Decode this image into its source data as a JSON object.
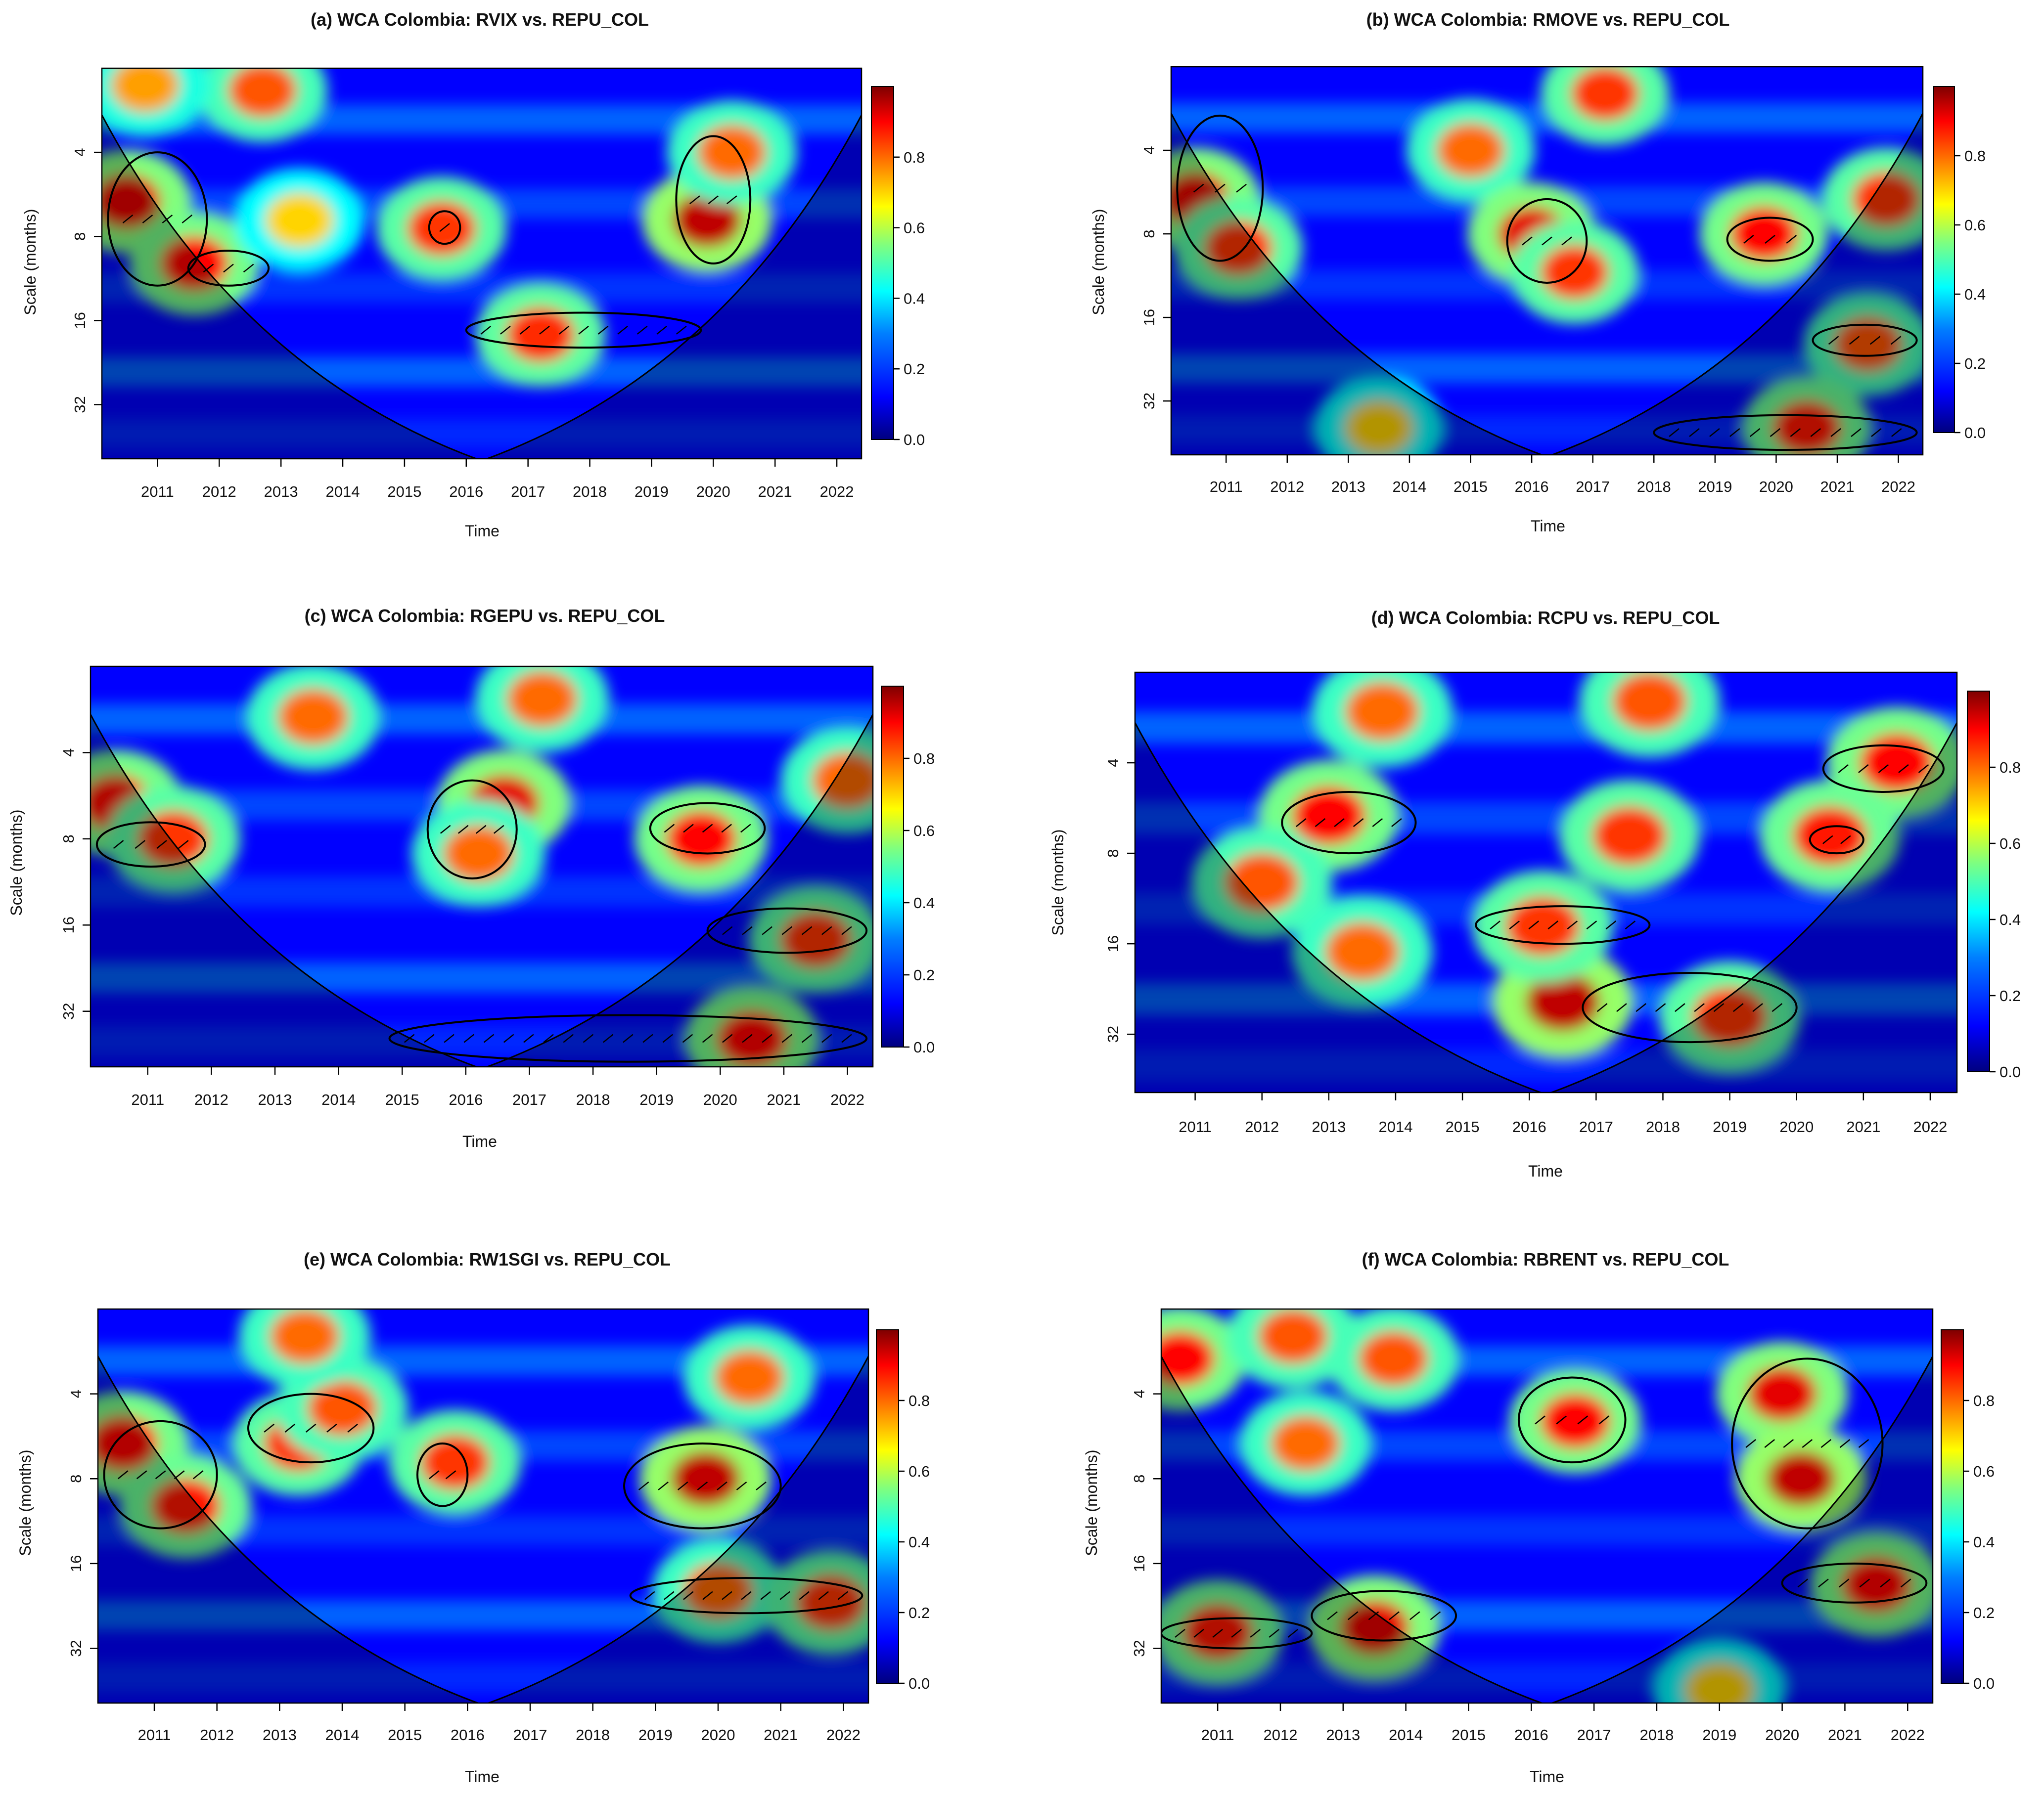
{
  "figure": {
    "colors": {
      "colorbar_stops": [
        "#00007f",
        "#0000ff",
        "#007fff",
        "#00ffff",
        "#7fff7f",
        "#ffff00",
        "#ff7f00",
        "#ff0000",
        "#7f0000"
      ],
      "contour": "#000000",
      "cone_overlay": "rgba(0,0,0,0.3)"
    }
  },
  "chart_data": [
    {
      "type": "heatmap",
      "title": "(a) WCA Colombia: RVIX vs. REPU_COL",
      "xlabel": "Time",
      "ylabel": "Scale (months)",
      "x_ticks": [
        "2011",
        "2012",
        "2013",
        "2014",
        "2015",
        "2016",
        "2017",
        "2018",
        "2019",
        "2020",
        "2021",
        "2022"
      ],
      "xlim": [
        2010.1,
        2022.4
      ],
      "y_ticks": [
        4,
        8,
        16,
        32
      ],
      "ylim": [
        2,
        50
      ],
      "y_scale": "log2",
      "colorbar_ticks": [
        "0.0",
        "0.2",
        "0.4",
        "0.6",
        "0.8"
      ],
      "zlim": [
        0,
        1
      ],
      "hotspots": [
        {
          "x": 2010.5,
          "y": 6,
          "z": 0.92
        },
        {
          "x": 2011.6,
          "y": 10,
          "z": 0.9
        },
        {
          "x": 2012.7,
          "y": 2.4,
          "z": 0.82
        },
        {
          "x": 2013.3,
          "y": 7,
          "z": 0.7
        },
        {
          "x": 2015.6,
          "y": 7.5,
          "z": 0.85
        },
        {
          "x": 2017.2,
          "y": 18,
          "z": 0.86
        },
        {
          "x": 2019.9,
          "y": 7,
          "z": 0.95
        },
        {
          "x": 2020.3,
          "y": 4,
          "z": 0.8
        },
        {
          "x": 2010.8,
          "y": 2.3,
          "z": 0.75
        }
      ],
      "significant_regions": [
        {
          "x": [
            2010.2,
            2011.8
          ],
          "y": [
            4,
            12
          ]
        },
        {
          "x": [
            2011.5,
            2012.8
          ],
          "y": [
            9,
            12
          ]
        },
        {
          "x": [
            2015.4,
            2015.9
          ],
          "y": [
            6.5,
            8.5
          ]
        },
        {
          "x": [
            2016.0,
            2019.8
          ],
          "y": [
            15,
            20
          ]
        },
        {
          "x": [
            2019.4,
            2020.6
          ],
          "y": [
            3.5,
            10
          ]
        }
      ]
    },
    {
      "type": "heatmap",
      "title": "(b) WCA Colombia: RMOVE vs. REPU_COL",
      "xlabel": "Time",
      "ylabel": "Scale (months)",
      "x_ticks": [
        "2011",
        "2012",
        "2013",
        "2014",
        "2015",
        "2016",
        "2017",
        "2018",
        "2019",
        "2020",
        "2021",
        "2022"
      ],
      "xlim": [
        2010.1,
        2022.4
      ],
      "y_ticks": [
        4,
        8,
        16,
        32
      ],
      "ylim": [
        2,
        50
      ],
      "y_scale": "log2",
      "colorbar_ticks": [
        "0.0",
        "0.2",
        "0.4",
        "0.6",
        "0.8"
      ],
      "zlim": [
        0,
        1
      ],
      "hotspots": [
        {
          "x": 2010.5,
          "y": 6,
          "z": 0.92
        },
        {
          "x": 2011.2,
          "y": 9,
          "z": 0.85
        },
        {
          "x": 2015.0,
          "y": 4,
          "z": 0.8
        },
        {
          "x": 2016.0,
          "y": 8,
          "z": 0.92
        },
        {
          "x": 2016.7,
          "y": 11,
          "z": 0.85
        },
        {
          "x": 2017.2,
          "y": 2.5,
          "z": 0.85
        },
        {
          "x": 2019.8,
          "y": 8,
          "z": 0.9
        },
        {
          "x": 2021.8,
          "y": 6,
          "z": 0.85
        },
        {
          "x": 2021.5,
          "y": 20,
          "z": 0.82
        },
        {
          "x": 2020.5,
          "y": 40,
          "z": 0.88
        },
        {
          "x": 2013.5,
          "y": 40,
          "z": 0.7
        }
      ],
      "significant_regions": [
        {
          "x": [
            2010.2,
            2011.6
          ],
          "y": [
            3,
            10
          ]
        },
        {
          "x": [
            2015.6,
            2016.9
          ],
          "y": [
            6,
            12
          ]
        },
        {
          "x": [
            2019.2,
            2020.6
          ],
          "y": [
            7,
            10
          ]
        },
        {
          "x": [
            2020.6,
            2022.3
          ],
          "y": [
            17,
            22
          ]
        },
        {
          "x": [
            2018.0,
            2022.3
          ],
          "y": [
            36,
            48
          ]
        }
      ]
    },
    {
      "type": "heatmap",
      "title": "(c) WCA Colombia: RGEPU vs. REPU_COL",
      "xlabel": "Time",
      "ylabel": "Scale (months)",
      "x_ticks": [
        "2011",
        "2012",
        "2013",
        "2014",
        "2015",
        "2016",
        "2017",
        "2018",
        "2019",
        "2020",
        "2021",
        "2022"
      ],
      "xlim": [
        2010.1,
        2022.4
      ],
      "y_ticks": [
        4,
        8,
        16,
        32
      ],
      "ylim": [
        2,
        50
      ],
      "y_scale": "log2",
      "colorbar_ticks": [
        "0.0",
        "0.2",
        "0.4",
        "0.6",
        "0.8"
      ],
      "zlim": [
        0,
        1
      ],
      "hotspots": [
        {
          "x": 2010.5,
          "y": 6,
          "z": 0.9
        },
        {
          "x": 2011.4,
          "y": 8,
          "z": 0.85
        },
        {
          "x": 2013.6,
          "y": 3,
          "z": 0.8
        },
        {
          "x": 2016.6,
          "y": 6,
          "z": 0.92
        },
        {
          "x": 2016.2,
          "y": 9,
          "z": 0.8
        },
        {
          "x": 2019.7,
          "y": 8,
          "z": 0.9
        },
        {
          "x": 2021.5,
          "y": 18,
          "z": 0.85
        },
        {
          "x": 2022.0,
          "y": 5,
          "z": 0.8
        },
        {
          "x": 2020.5,
          "y": 40,
          "z": 0.9
        },
        {
          "x": 2017.2,
          "y": 2.6,
          "z": 0.8
        }
      ],
      "significant_regions": [
        {
          "x": [
            2010.2,
            2011.9
          ],
          "y": [
            7,
            10
          ]
        },
        {
          "x": [
            2015.4,
            2016.8
          ],
          "y": [
            5,
            11
          ]
        },
        {
          "x": [
            2018.9,
            2020.7
          ],
          "y": [
            6,
            9
          ]
        },
        {
          "x": [
            2019.8,
            2022.3
          ],
          "y": [
            14,
            20
          ]
        },
        {
          "x": [
            2014.8,
            2022.3
          ],
          "y": [
            33,
            48
          ]
        }
      ]
    },
    {
      "type": "heatmap",
      "title": "(d) WCA Colombia: RCPU vs. REPU_COL",
      "xlabel": "Time",
      "ylabel": "Scale (months)",
      "x_ticks": [
        "2011",
        "2012",
        "2013",
        "2014",
        "2015",
        "2016",
        "2017",
        "2018",
        "2019",
        "2020",
        "2021",
        "2022"
      ],
      "xlim": [
        2010.1,
        2022.4
      ],
      "y_ticks": [
        4,
        8,
        16,
        32
      ],
      "ylim": [
        2,
        50
      ],
      "y_scale": "log2",
      "colorbar_ticks": [
        "0.0",
        "0.2",
        "0.4",
        "0.6",
        "0.8"
      ],
      "zlim": [
        0,
        1
      ],
      "hotspots": [
        {
          "x": 2013.0,
          "y": 6,
          "z": 0.9
        },
        {
          "x": 2012.0,
          "y": 10,
          "z": 0.82
        },
        {
          "x": 2013.5,
          "y": 17,
          "z": 0.8
        },
        {
          "x": 2016.5,
          "y": 25,
          "z": 0.95
        },
        {
          "x": 2016.2,
          "y": 14,
          "z": 0.85
        },
        {
          "x": 2019.0,
          "y": 28,
          "z": 0.85
        },
        {
          "x": 2021.5,
          "y": 4,
          "z": 0.9
        },
        {
          "x": 2020.5,
          "y": 7,
          "z": 0.88
        },
        {
          "x": 2017.5,
          "y": 7,
          "z": 0.85
        },
        {
          "x": 2017.8,
          "y": 2.5,
          "z": 0.82
        },
        {
          "x": 2013.8,
          "y": 2.7,
          "z": 0.8
        }
      ],
      "significant_regions": [
        {
          "x": [
            2012.3,
            2014.3
          ],
          "y": [
            5,
            8
          ]
        },
        {
          "x": [
            2015.2,
            2017.8
          ],
          "y": [
            12,
            16
          ]
        },
        {
          "x": [
            2016.8,
            2020.0
          ],
          "y": [
            20,
            34
          ]
        },
        {
          "x": [
            2020.4,
            2022.2
          ],
          "y": [
            3.5,
            5
          ]
        },
        {
          "x": [
            2020.2,
            2021.0
          ],
          "y": [
            6.5,
            8
          ]
        }
      ]
    },
    {
      "type": "heatmap",
      "title": "(e) WCA Colombia: RW1SGI vs. REPU_COL",
      "xlabel": "Time",
      "ylabel": "Scale (months)",
      "x_ticks": [
        "2011",
        "2012",
        "2013",
        "2014",
        "2015",
        "2016",
        "2017",
        "2018",
        "2019",
        "2020",
        "2021",
        "2022"
      ],
      "xlim": [
        2010.1,
        2022.4
      ],
      "y_ticks": [
        4,
        8,
        16,
        32
      ],
      "ylim": [
        2,
        50
      ],
      "y_scale": "log2",
      "colorbar_ticks": [
        "0.0",
        "0.2",
        "0.4",
        "0.6",
        "0.8"
      ],
      "zlim": [
        0,
        1
      ],
      "hotspots": [
        {
          "x": 2010.5,
          "y": 6,
          "z": 0.9
        },
        {
          "x": 2011.5,
          "y": 10,
          "z": 0.88
        },
        {
          "x": 2013.3,
          "y": 6,
          "z": 0.85
        },
        {
          "x": 2014.0,
          "y": 4.5,
          "z": 0.82
        },
        {
          "x": 2013.4,
          "y": 2.5,
          "z": 0.8
        },
        {
          "x": 2015.8,
          "y": 7,
          "z": 0.85
        },
        {
          "x": 2019.8,
          "y": 8,
          "z": 0.95
        },
        {
          "x": 2020.5,
          "y": 3.5,
          "z": 0.8
        },
        {
          "x": 2020.0,
          "y": 20,
          "z": 0.8
        },
        {
          "x": 2021.8,
          "y": 22,
          "z": 0.85
        }
      ],
      "significant_regions": [
        {
          "x": [
            2010.2,
            2012.0
          ],
          "y": [
            5,
            12
          ]
        },
        {
          "x": [
            2012.5,
            2014.5
          ],
          "y": [
            4,
            7
          ]
        },
        {
          "x": [
            2015.2,
            2016.0
          ],
          "y": [
            6,
            10
          ]
        },
        {
          "x": [
            2018.5,
            2021.0
          ],
          "y": [
            6,
            12
          ]
        },
        {
          "x": [
            2018.6,
            2022.3
          ],
          "y": [
            18,
            24
          ]
        }
      ]
    },
    {
      "type": "heatmap",
      "title": "(f) WCA Colombia: RBRENT vs. REPU_COL",
      "xlabel": "Time",
      "ylabel": "Scale (months)",
      "x_ticks": [
        "2011",
        "2012",
        "2013",
        "2014",
        "2015",
        "2016",
        "2017",
        "2018",
        "2019",
        "2020",
        "2021",
        "2022"
      ],
      "xlim": [
        2010.1,
        2022.4
      ],
      "y_ticks": [
        4,
        8,
        16,
        32
      ],
      "ylim": [
        2,
        50
      ],
      "y_scale": "log2",
      "colorbar_ticks": [
        "0.0",
        "0.2",
        "0.4",
        "0.6",
        "0.8"
      ],
      "zlim": [
        0,
        1
      ],
      "hotspots": [
        {
          "x": 2010.4,
          "y": 3,
          "z": 0.9
        },
        {
          "x": 2012.2,
          "y": 2.5,
          "z": 0.82
        },
        {
          "x": 2012.4,
          "y": 6,
          "z": 0.8
        },
        {
          "x": 2013.8,
          "y": 3,
          "z": 0.82
        },
        {
          "x": 2016.7,
          "y": 5,
          "z": 0.9
        },
        {
          "x": 2020.0,
          "y": 4,
          "z": 0.92
        },
        {
          "x": 2020.3,
          "y": 8,
          "z": 0.95
        },
        {
          "x": 2021.5,
          "y": 19,
          "z": 0.9
        },
        {
          "x": 2013.5,
          "y": 27,
          "z": 0.92
        },
        {
          "x": 2011.0,
          "y": 28,
          "z": 0.88
        },
        {
          "x": 2019.0,
          "y": 45,
          "z": 0.7
        }
      ],
      "significant_regions": [
        {
          "x": [
            2010.1,
            2012.5
          ],
          "y": [
            25,
            32
          ]
        },
        {
          "x": [
            2012.5,
            2014.8
          ],
          "y": [
            20,
            30
          ]
        },
        {
          "x": [
            2015.8,
            2017.5
          ],
          "y": [
            3.5,
            7
          ]
        },
        {
          "x": [
            2019.2,
            2021.6
          ],
          "y": [
            3,
            12
          ]
        },
        {
          "x": [
            2020.0,
            2022.3
          ],
          "y": [
            16,
            22
          ]
        }
      ]
    }
  ]
}
